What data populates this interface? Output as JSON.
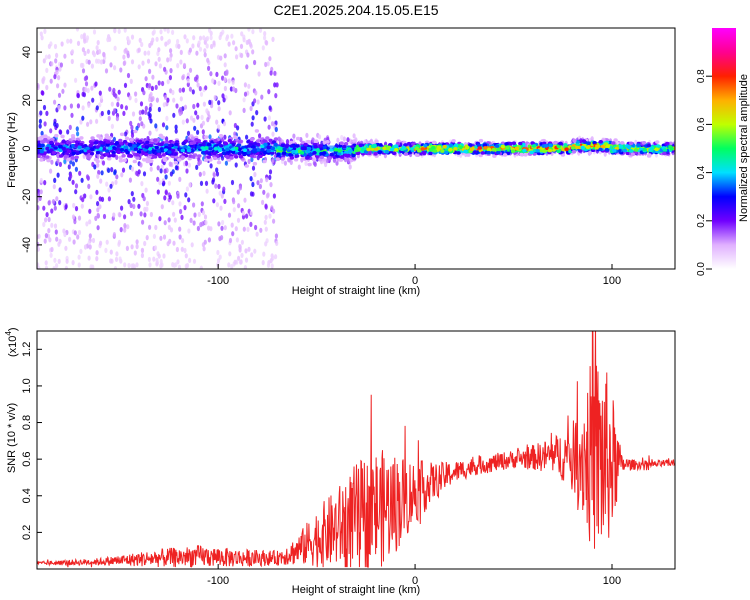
{
  "title": "C2E1.2025.204.15.05.E15",
  "chart_data": [
    {
      "type": "heatmap",
      "xlabel": "Height of straight line (km)",
      "ylabel": "Frequency (Hz)",
      "xlim": [
        -192,
        132
      ],
      "ylim": [
        -50,
        50
      ],
      "xticks": [
        -100,
        0,
        100
      ],
      "yticks": [
        -40,
        -20,
        0,
        20,
        40
      ],
      "colorbar": {
        "label": "Normalized spectral amplitude",
        "range": [
          0,
          1
        ],
        "ticks": [
          0.0,
          0.2,
          0.4,
          0.6,
          0.8
        ],
        "colors": [
          "#ffffff",
          "#e0b0ff",
          "#7000ff",
          "#0000ff",
          "#00e0ff",
          "#00ff60",
          "#c0ff00",
          "#ffb000",
          "#ff2000",
          "#ff0090",
          "#ff00ff"
        ]
      },
      "bands": [
        {
          "x": [
            -192,
            -110
          ],
          "center": 0,
          "core_halfwidth": 4,
          "scatter_halfwidth": 50,
          "peak_amplitude": 0.45
        },
        {
          "x": [
            -110,
            -70
          ],
          "center": 0,
          "core_halfwidth": 4,
          "scatter_halfwidth": 50,
          "peak_amplitude": 0.5
        },
        {
          "x": [
            -70,
            -30
          ],
          "center": -1,
          "core_halfwidth": 3,
          "scatter_halfwidth": 8,
          "peak_amplitude": 0.6
        },
        {
          "x": [
            -30,
            0
          ],
          "center": 0,
          "core_halfwidth": 2,
          "scatter_halfwidth": 4,
          "peak_amplitude": 0.75
        },
        {
          "x": [
            0,
            80
          ],
          "center": 0,
          "core_halfwidth": 2,
          "scatter_halfwidth": 3,
          "peak_amplitude": 0.9
        },
        {
          "x": [
            80,
            100
          ],
          "center": 1,
          "core_halfwidth": 2,
          "scatter_halfwidth": 4,
          "peak_amplitude": 0.9
        },
        {
          "x": [
            100,
            132
          ],
          "center": 0,
          "core_halfwidth": 2,
          "scatter_halfwidth": 3,
          "peak_amplitude": 0.8
        }
      ]
    },
    {
      "type": "line",
      "xlabel": "Height of straight line (km)",
      "ylabel": "SNR (10 * v/v)",
      "yscale_label": "(x10",
      "yscale_exp": "4",
      "yscale_close": ")",
      "xlim": [
        -192,
        132
      ],
      "ylim": [
        0,
        1.3
      ],
      "xticks": [
        -100,
        0,
        100
      ],
      "yticks": [
        0.2,
        0.4,
        0.6,
        0.8,
        1.0,
        1.2
      ],
      "color": "#ee2222",
      "envelope": {
        "x": [
          -192,
          -160,
          -130,
          -110,
          -90,
          -70,
          -60,
          -50,
          -40,
          -30,
          -20,
          -10,
          0,
          10,
          20,
          30,
          40,
          50,
          60,
          70,
          80,
          85,
          90,
          95,
          100,
          105,
          110,
          120,
          132
        ],
        "base": [
          0.03,
          0.04,
          0.06,
          0.07,
          0.06,
          0.06,
          0.1,
          0.17,
          0.22,
          0.28,
          0.32,
          0.36,
          0.42,
          0.48,
          0.53,
          0.56,
          0.58,
          0.6,
          0.61,
          0.62,
          0.62,
          0.62,
          0.62,
          0.6,
          0.58,
          0.57,
          0.57,
          0.57,
          0.58
        ],
        "noise": [
          0.01,
          0.02,
          0.05,
          0.06,
          0.05,
          0.04,
          0.08,
          0.16,
          0.22,
          0.3,
          0.34,
          0.28,
          0.18,
          0.1,
          0.06,
          0.05,
          0.05,
          0.05,
          0.07,
          0.1,
          0.18,
          0.34,
          0.55,
          0.58,
          0.4,
          0.05,
          0.03,
          0.02,
          0.02
        ]
      }
    }
  ]
}
